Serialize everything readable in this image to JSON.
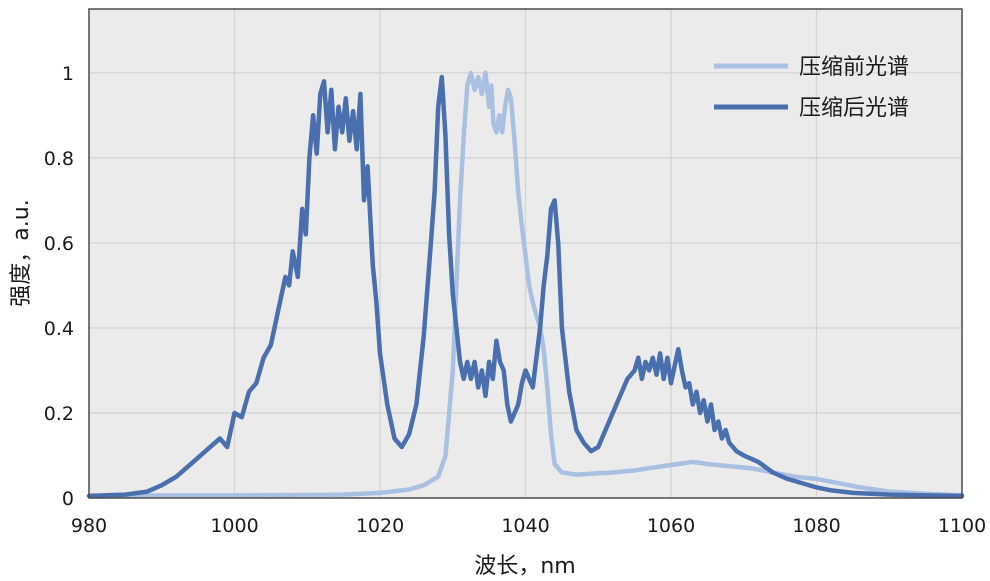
{
  "chart_data": {
    "type": "line",
    "xlabel": "波长，nm",
    "ylabel": "强度，a.u.",
    "xlim": [
      980,
      1100
    ],
    "ylim": [
      0,
      1.15
    ],
    "x_ticks": [
      980,
      1000,
      1020,
      1040,
      1060,
      1080,
      1100
    ],
    "x_tick_labels": [
      "980",
      "1000",
      "1020",
      "1040",
      "1060",
      "1080",
      "1100"
    ],
    "y_ticks": [
      0,
      0.2,
      0.4,
      0.6,
      0.8,
      1
    ],
    "y_tick_labels": [
      "0",
      "0.2",
      "0.4",
      "0.6",
      "0.8",
      "1"
    ],
    "grid": true,
    "legend_position": "top-right",
    "plot_background": "#ebebeb",
    "series": [
      {
        "name": "压缩前光谱",
        "color": "#a9c0e3",
        "points": [
          [
            980,
            0.005
          ],
          [
            990,
            0.006
          ],
          [
            1000,
            0.006
          ],
          [
            1010,
            0.007
          ],
          [
            1015,
            0.008
          ],
          [
            1020,
            0.012
          ],
          [
            1024,
            0.02
          ],
          [
            1026,
            0.03
          ],
          [
            1028,
            0.05
          ],
          [
            1029,
            0.1
          ],
          [
            1030,
            0.3
          ],
          [
            1030.5,
            0.5
          ],
          [
            1031,
            0.7
          ],
          [
            1031.5,
            0.85
          ],
          [
            1032,
            0.97
          ],
          [
            1032.5,
            1.0
          ],
          [
            1033,
            0.96
          ],
          [
            1033.5,
            0.99
          ],
          [
            1034,
            0.95
          ],
          [
            1034.5,
            1.0
          ],
          [
            1035,
            0.92
          ],
          [
            1035.3,
            0.97
          ],
          [
            1035.6,
            0.88
          ],
          [
            1036,
            0.86
          ],
          [
            1036.4,
            0.9
          ],
          [
            1036.8,
            0.86
          ],
          [
            1037.2,
            0.92
          ],
          [
            1037.6,
            0.96
          ],
          [
            1038,
            0.94
          ],
          [
            1038.5,
            0.84
          ],
          [
            1039,
            0.72
          ],
          [
            1039.5,
            0.64
          ],
          [
            1040,
            0.57
          ],
          [
            1040.5,
            0.5
          ],
          [
            1041,
            0.46
          ],
          [
            1041.5,
            0.43
          ],
          [
            1042,
            0.4
          ],
          [
            1042.5,
            0.35
          ],
          [
            1043,
            0.26
          ],
          [
            1043.5,
            0.15
          ],
          [
            1044,
            0.08
          ],
          [
            1045,
            0.06
          ],
          [
            1047,
            0.055
          ],
          [
            1050,
            0.058
          ],
          [
            1052,
            0.06
          ],
          [
            1055,
            0.065
          ],
          [
            1057,
            0.07
          ],
          [
            1059,
            0.075
          ],
          [
            1061,
            0.08
          ],
          [
            1063,
            0.085
          ],
          [
            1065,
            0.08
          ],
          [
            1068,
            0.075
          ],
          [
            1071,
            0.07
          ],
          [
            1074,
            0.06
          ],
          [
            1077,
            0.05
          ],
          [
            1080,
            0.045
          ],
          [
            1083,
            0.035
          ],
          [
            1086,
            0.025
          ],
          [
            1090,
            0.015
          ],
          [
            1095,
            0.01
          ],
          [
            1100,
            0.006
          ]
        ]
      },
      {
        "name": "压缩后光谱",
        "color": "#4a6fae",
        "points": [
          [
            980,
            0.005
          ],
          [
            985,
            0.008
          ],
          [
            988,
            0.015
          ],
          [
            990,
            0.03
          ],
          [
            992,
            0.05
          ],
          [
            994,
            0.08
          ],
          [
            996,
            0.11
          ],
          [
            998,
            0.14
          ],
          [
            999,
            0.12
          ],
          [
            1000,
            0.2
          ],
          [
            1001,
            0.19
          ],
          [
            1002,
            0.25
          ],
          [
            1003,
            0.27
          ],
          [
            1004,
            0.33
          ],
          [
            1005,
            0.36
          ],
          [
            1006,
            0.44
          ],
          [
            1007,
            0.52
          ],
          [
            1007.5,
            0.5
          ],
          [
            1008,
            0.58
          ],
          [
            1008.7,
            0.52
          ],
          [
            1009.3,
            0.68
          ],
          [
            1009.8,
            0.62
          ],
          [
            1010.3,
            0.8
          ],
          [
            1010.8,
            0.9
          ],
          [
            1011.3,
            0.81
          ],
          [
            1011.8,
            0.95
          ],
          [
            1012.3,
            0.98
          ],
          [
            1012.8,
            0.86
          ],
          [
            1013.3,
            0.96
          ],
          [
            1013.8,
            0.82
          ],
          [
            1014.3,
            0.92
          ],
          [
            1014.8,
            0.86
          ],
          [
            1015.3,
            0.94
          ],
          [
            1015.8,
            0.84
          ],
          [
            1016.3,
            0.91
          ],
          [
            1016.8,
            0.82
          ],
          [
            1017.3,
            0.95
          ],
          [
            1017.8,
            0.7
          ],
          [
            1018.3,
            0.78
          ],
          [
            1019,
            0.55
          ],
          [
            1019.5,
            0.46
          ],
          [
            1020,
            0.34
          ],
          [
            1021,
            0.22
          ],
          [
            1022,
            0.14
          ],
          [
            1023,
            0.12
          ],
          [
            1024,
            0.15
          ],
          [
            1025,
            0.22
          ],
          [
            1026,
            0.38
          ],
          [
            1027,
            0.6
          ],
          [
            1027.5,
            0.72
          ],
          [
            1028,
            0.92
          ],
          [
            1028.5,
            0.99
          ],
          [
            1029,
            0.85
          ],
          [
            1029.5,
            0.62
          ],
          [
            1030,
            0.48
          ],
          [
            1030.5,
            0.4
          ],
          [
            1031,
            0.32
          ],
          [
            1031.5,
            0.28
          ],
          [
            1032,
            0.32
          ],
          [
            1032.5,
            0.28
          ],
          [
            1033,
            0.32
          ],
          [
            1033.5,
            0.26
          ],
          [
            1034,
            0.3
          ],
          [
            1034.5,
            0.24
          ],
          [
            1035,
            0.32
          ],
          [
            1035.5,
            0.28
          ],
          [
            1036,
            0.37
          ],
          [
            1036.5,
            0.32
          ],
          [
            1037,
            0.3
          ],
          [
            1037.5,
            0.22
          ],
          [
            1038,
            0.18
          ],
          [
            1038.5,
            0.2
          ],
          [
            1039,
            0.22
          ],
          [
            1039.5,
            0.27
          ],
          [
            1040,
            0.3
          ],
          [
            1040.5,
            0.28
          ],
          [
            1041,
            0.26
          ],
          [
            1041.5,
            0.33
          ],
          [
            1042,
            0.4
          ],
          [
            1042.5,
            0.5
          ],
          [
            1043,
            0.57
          ],
          [
            1043.5,
            0.68
          ],
          [
            1044,
            0.7
          ],
          [
            1044.5,
            0.6
          ],
          [
            1045,
            0.4
          ],
          [
            1046,
            0.25
          ],
          [
            1047,
            0.16
          ],
          [
            1048,
            0.13
          ],
          [
            1049,
            0.11
          ],
          [
            1050,
            0.12
          ],
          [
            1051,
            0.16
          ],
          [
            1052,
            0.2
          ],
          [
            1053,
            0.24
          ],
          [
            1054,
            0.28
          ],
          [
            1055,
            0.3
          ],
          [
            1055.5,
            0.33
          ],
          [
            1056,
            0.28
          ],
          [
            1056.5,
            0.32
          ],
          [
            1057,
            0.3
          ],
          [
            1057.5,
            0.33
          ],
          [
            1058,
            0.29
          ],
          [
            1058.5,
            0.34
          ],
          [
            1059,
            0.28
          ],
          [
            1059.5,
            0.33
          ],
          [
            1060,
            0.27
          ],
          [
            1060.5,
            0.31
          ],
          [
            1061,
            0.35
          ],
          [
            1061.5,
            0.3
          ],
          [
            1062,
            0.26
          ],
          [
            1062.5,
            0.27
          ],
          [
            1063,
            0.22
          ],
          [
            1063.5,
            0.25
          ],
          [
            1064,
            0.2
          ],
          [
            1064.5,
            0.23
          ],
          [
            1065,
            0.18
          ],
          [
            1065.5,
            0.22
          ],
          [
            1066,
            0.16
          ],
          [
            1066.5,
            0.18
          ],
          [
            1067,
            0.14
          ],
          [
            1067.5,
            0.16
          ],
          [
            1068,
            0.13
          ],
          [
            1069,
            0.11
          ],
          [
            1070,
            0.1
          ],
          [
            1072,
            0.085
          ],
          [
            1074,
            0.06
          ],
          [
            1076,
            0.045
          ],
          [
            1078,
            0.035
          ],
          [
            1080,
            0.025
          ],
          [
            1082,
            0.018
          ],
          [
            1085,
            0.012
          ],
          [
            1090,
            0.008
          ],
          [
            1095,
            0.006
          ],
          [
            1100,
            0.005
          ]
        ]
      }
    ]
  }
}
